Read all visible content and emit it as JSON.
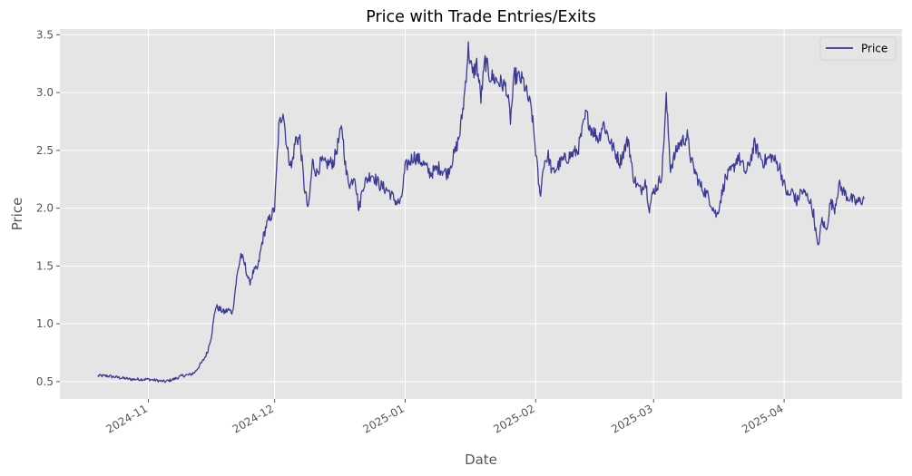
{
  "chart_data": {
    "type": "line",
    "title": "Price with Trade Entries/Exits",
    "xlabel": "Date",
    "ylabel": "Price",
    "grid": true,
    "legend_position": "top-right",
    "x_axis_type": "date",
    "xlim": [
      "2024-10-11",
      "2025-04-29"
    ],
    "ylim": [
      0.35,
      3.55
    ],
    "x_ticks": [
      "2024-11",
      "2024-12",
      "2025-01",
      "2025-02",
      "2025-03",
      "2025-04"
    ],
    "x_tick_dates": [
      "2024-11-01",
      "2024-12-01",
      "2025-01-01",
      "2025-02-01",
      "2025-03-01",
      "2025-04-01"
    ],
    "y_ticks": [
      0.5,
      1.0,
      1.5,
      2.0,
      2.5,
      3.0,
      3.5
    ],
    "y_tick_labels": [
      "0.5",
      "1.0",
      "1.5",
      "2.0",
      "2.5",
      "3.0",
      "3.5"
    ],
    "colors": {
      "price": "#3b3b96",
      "plot_bg": "#e5e5e5",
      "grid": "#ffffff"
    },
    "series": [
      {
        "name": "Price",
        "x": [
          "2024-10-20",
          "2024-10-22",
          "2024-10-24",
          "2024-10-26",
          "2024-10-28",
          "2024-10-30",
          "2024-11-01",
          "2024-11-03",
          "2024-11-05",
          "2024-11-07",
          "2024-11-09",
          "2024-11-11",
          "2024-11-12",
          "2024-11-13",
          "2024-11-14",
          "2024-11-15",
          "2024-11-16",
          "2024-11-17",
          "2024-11-19",
          "2024-11-20",
          "2024-11-21",
          "2024-11-22",
          "2024-11-23",
          "2024-11-24",
          "2024-11-25",
          "2024-11-26",
          "2024-11-27",
          "2024-11-28",
          "2024-11-29",
          "2024-11-30",
          "2024-12-01",
          "2024-12-02",
          "2024-12-03",
          "2024-12-04",
          "2024-12-05",
          "2024-12-06",
          "2024-12-07",
          "2024-12-08",
          "2024-12-09",
          "2024-12-10",
          "2024-12-11",
          "2024-12-12",
          "2024-12-13",
          "2024-12-15",
          "2024-12-17",
          "2024-12-18",
          "2024-12-19",
          "2024-12-20",
          "2024-12-21",
          "2024-12-22",
          "2024-12-24",
          "2024-12-26",
          "2024-12-28",
          "2024-12-30",
          "2024-12-31",
          "2025-01-01",
          "2025-01-03",
          "2025-01-05",
          "2025-01-07",
          "2025-01-09",
          "2025-01-11",
          "2025-01-13",
          "2025-01-14",
          "2025-01-15",
          "2025-01-16",
          "2025-01-17",
          "2025-01-18",
          "2025-01-19",
          "2025-01-20",
          "2025-01-21",
          "2025-01-23",
          "2025-01-25",
          "2025-01-26",
          "2025-01-27",
          "2025-01-29",
          "2025-01-31",
          "2025-02-01",
          "2025-02-02",
          "2025-02-03",
          "2025-02-04",
          "2025-02-05",
          "2025-02-07",
          "2025-02-09",
          "2025-02-11",
          "2025-02-13",
          "2025-02-14",
          "2025-02-16",
          "2025-02-17",
          "2025-02-19",
          "2025-02-21",
          "2025-02-23",
          "2025-02-24",
          "2025-02-25",
          "2025-02-26",
          "2025-02-27",
          "2025-02-28",
          "2025-03-01",
          "2025-03-02",
          "2025-03-03",
          "2025-03-04",
          "2025-03-05",
          "2025-03-07",
          "2025-03-09",
          "2025-03-10",
          "2025-03-11",
          "2025-03-12",
          "2025-03-14",
          "2025-03-16",
          "2025-03-18",
          "2025-03-19",
          "2025-03-20",
          "2025-03-21",
          "2025-03-23",
          "2025-03-25",
          "2025-03-27",
          "2025-03-28",
          "2025-03-29",
          "2025-03-30",
          "2025-03-31",
          "2025-04-01",
          "2025-04-02",
          "2025-04-03",
          "2025-04-04",
          "2025-04-05",
          "2025-04-06",
          "2025-04-07",
          "2025-04-08",
          "2025-04-09",
          "2025-04-10",
          "2025-04-11",
          "2025-04-12",
          "2025-04-13",
          "2025-04-14",
          "2025-04-15",
          "2025-04-16",
          "2025-04-17",
          "2025-04-18",
          "2025-04-19",
          "2025-04-20"
        ],
        "y": [
          0.55,
          0.55,
          0.54,
          0.53,
          0.52,
          0.52,
          0.52,
          0.51,
          0.5,
          0.52,
          0.55,
          0.56,
          0.58,
          0.63,
          0.68,
          0.75,
          0.9,
          1.15,
          1.1,
          1.12,
          1.1,
          1.4,
          1.6,
          1.5,
          1.35,
          1.45,
          1.48,
          1.7,
          1.85,
          1.92,
          2.0,
          2.7,
          2.85,
          2.5,
          2.35,
          2.6,
          2.6,
          2.2,
          1.98,
          2.4,
          2.3,
          2.4,
          2.38,
          2.4,
          2.7,
          2.3,
          2.2,
          2.3,
          1.98,
          2.2,
          2.3,
          2.2,
          2.15,
          2.05,
          2.05,
          2.35,
          2.45,
          2.4,
          2.3,
          2.35,
          2.3,
          2.5,
          2.65,
          2.95,
          3.38,
          3.15,
          3.25,
          2.95,
          3.28,
          3.15,
          3.1,
          3.05,
          2.77,
          3.15,
          3.1,
          2.85,
          2.5,
          2.1,
          2.4,
          2.45,
          2.3,
          2.4,
          2.45,
          2.5,
          2.82,
          2.7,
          2.6,
          2.74,
          2.55,
          2.4,
          2.6,
          2.3,
          2.2,
          2.15,
          2.25,
          2.0,
          2.15,
          2.2,
          2.3,
          2.95,
          2.35,
          2.55,
          2.62,
          2.4,
          2.3,
          2.2,
          2.1,
          1.93,
          2.25,
          2.3,
          2.35,
          2.45,
          2.3,
          2.55,
          2.4,
          2.42,
          2.45,
          2.4,
          2.35,
          2.2,
          2.1,
          2.15,
          2.05,
          2.15,
          2.12,
          2.08,
          1.95,
          1.65,
          1.9,
          1.8,
          2.05,
          2.0,
          2.2,
          2.15,
          2.1,
          2.08,
          2.05,
          2.06,
          2.08
        ]
      }
    ]
  }
}
